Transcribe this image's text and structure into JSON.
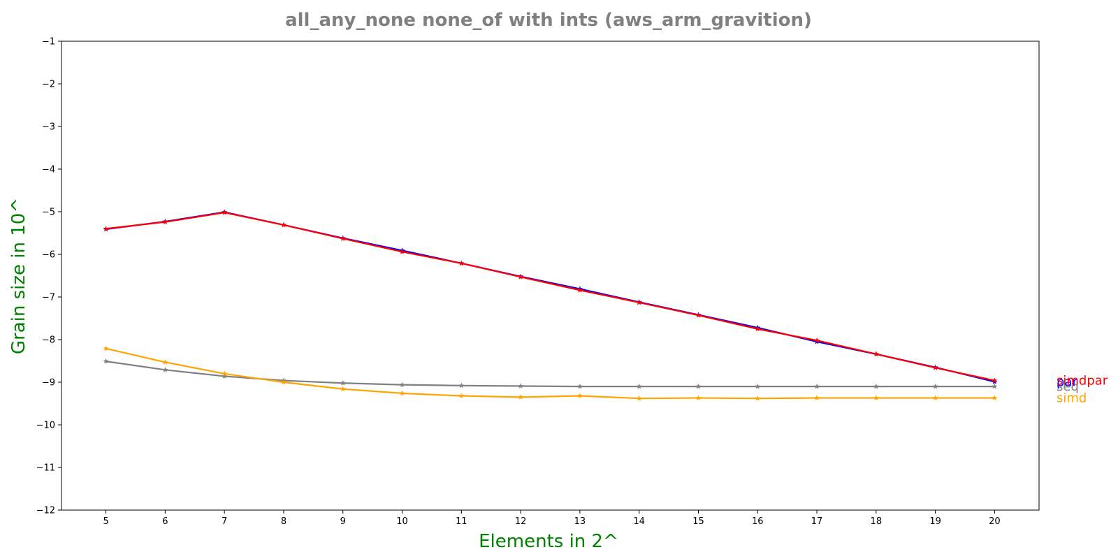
{
  "chart_data": {
    "type": "line",
    "title": "all_any_none none_of with ints  (aws_arm_gravition)",
    "xlabel": "Elements in 2^",
    "ylabel": "Grain size in 10^",
    "x": [
      5,
      6,
      7,
      8,
      9,
      10,
      11,
      12,
      13,
      14,
      15,
      16,
      17,
      18,
      19,
      20
    ],
    "xlim": [
      4.25,
      20.75
    ],
    "ylim": [
      -12,
      -1
    ],
    "xticks": [
      "5",
      "6",
      "7",
      "8",
      "9",
      "10",
      "11",
      "12",
      "13",
      "14",
      "15",
      "16",
      "17",
      "18",
      "19",
      "20"
    ],
    "yticks": [
      "−1",
      "−2",
      "−3",
      "−4",
      "−5",
      "−6",
      "−7",
      "−8",
      "−9",
      "−10",
      "−11",
      "−12"
    ],
    "ytick_values": [
      -1,
      -2,
      -3,
      -4,
      -5,
      -6,
      -7,
      -8,
      -9,
      -10,
      -11,
      -12
    ],
    "grid": false,
    "legend": "none (series names printed at right end of lines)",
    "series": [
      {
        "name": "seq",
        "color": "#808080",
        "marker": "star",
        "values": [
          -8.51,
          -8.71,
          -8.86,
          -8.96,
          -9.02,
          -9.06,
          -9.08,
          -9.09,
          -9.1,
          -9.1,
          -9.1,
          -9.1,
          -9.1,
          -9.1,
          -9.1,
          -9.1
        ]
      },
      {
        "name": "simd",
        "color": "#ffa500",
        "marker": "star",
        "values": [
          -8.21,
          -8.53,
          -8.8,
          -9.0,
          -9.16,
          -9.26,
          -9.32,
          -9.35,
          -9.32,
          -9.38,
          -9.37,
          -9.38,
          -9.37,
          -9.37,
          -9.37,
          -9.37
        ]
      },
      {
        "name": "par",
        "color": "#0000ff",
        "marker": "star",
        "values": [
          -5.41,
          -5.23,
          -5.01,
          -5.31,
          -5.62,
          -5.91,
          -6.21,
          -6.52,
          -6.81,
          -7.12,
          -7.42,
          -7.72,
          -8.05,
          -8.34,
          -8.65,
          -8.99
        ]
      },
      {
        "name": "simdpar",
        "color": "#ff0000",
        "marker": "star",
        "values": [
          -5.4,
          -5.24,
          -5.02,
          -5.31,
          -5.63,
          -5.94,
          -6.21,
          -6.53,
          -6.84,
          -7.13,
          -7.43,
          -7.75,
          -8.02,
          -8.34,
          -8.66,
          -8.96
        ]
      }
    ]
  }
}
